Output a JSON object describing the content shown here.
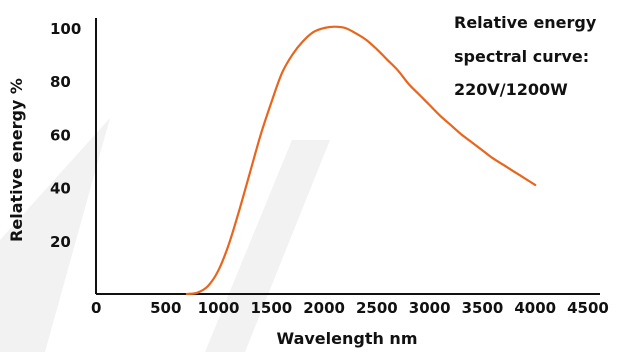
{
  "chart_data": {
    "type": "line",
    "annotation": [
      "Relative energy",
      "spectral curve:",
      "220V/1200W"
    ],
    "xlabel": "Wavelength nm",
    "ylabel": "Relative energy %",
    "xlim": [
      0,
      4500
    ],
    "ylim": [
      0,
      100
    ],
    "x_ticks": [
      "0",
      "500",
      "1000",
      "1500",
      "2000",
      "2500",
      "3000",
      "3500",
      "4000",
      "4500"
    ],
    "y_ticks": [
      "20",
      "40",
      "60",
      "80",
      "100"
    ],
    "grid": false,
    "colors": {
      "line": "#E8651E",
      "axis": "#111111",
      "watermark": "#f0f0f0"
    },
    "series": [
      {
        "x": [
          700,
          800,
          900,
          1000,
          1100,
          1200,
          1300,
          1400,
          1500,
          1600,
          1700,
          1800,
          1900,
          2000,
          2100,
          2200,
          2300,
          2400,
          2500,
          2600,
          2700,
          2800,
          2900,
          3000,
          3100,
          3200,
          3300,
          3400,
          3500,
          3600,
          3700,
          3800,
          3900,
          4000
        ],
        "values": [
          0,
          0.5,
          3,
          9,
          19,
          32,
          46,
          60,
          72,
          83,
          90,
          95,
          98.5,
          100,
          100.5,
          100,
          98,
          95.5,
          92,
          88,
          84,
          79,
          75,
          71,
          67,
          63.5,
          60,
          57,
          54,
          51,
          48.5,
          46,
          43.5,
          41
        ]
      }
    ]
  }
}
